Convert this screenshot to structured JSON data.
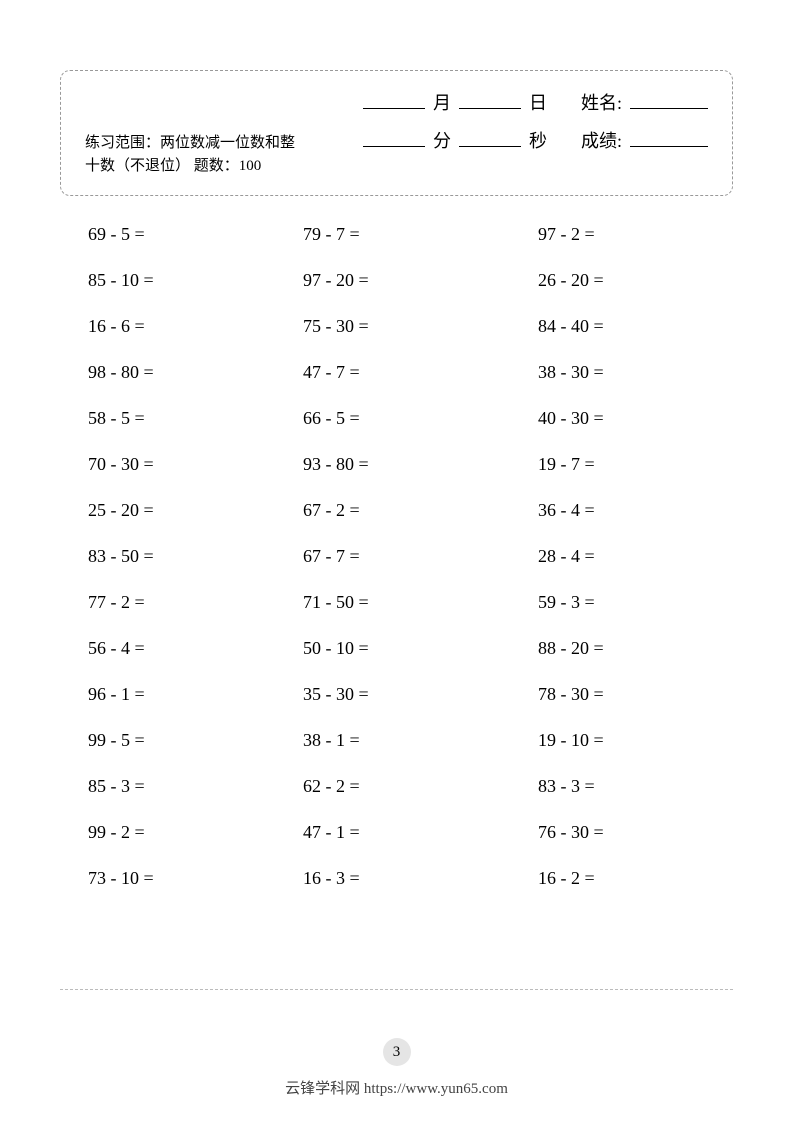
{
  "header": {
    "month_label": "月",
    "day_label": "日",
    "name_label": "姓名:",
    "minute_label": "分",
    "second_label": "秒",
    "score_label": "成绩:",
    "desc_line1": "练习范围：两位数减一位数和整",
    "desc_line2": "十数（不退位）  题数：100"
  },
  "problems": {
    "rows": [
      [
        "69 - 5 =",
        "79 - 7 =",
        "97 - 2 ="
      ],
      [
        "85 - 10 =",
        "97 - 20 =",
        "26 - 20 ="
      ],
      [
        "16 - 6 =",
        "75 - 30 =",
        "84 - 40 ="
      ],
      [
        "98 - 80 =",
        "47 - 7 =",
        "38 - 30 ="
      ],
      [
        "58 - 5 =",
        "66 - 5 =",
        "40 - 30 ="
      ],
      [
        "70 - 30 =",
        "93 - 80 =",
        "19 - 7 ="
      ],
      [
        "25 - 20 =",
        "67 - 2 =",
        "36 - 4 ="
      ],
      [
        "83 - 50 =",
        "67 - 7 =",
        "28 - 4 ="
      ],
      [
        "77 - 2 =",
        "71 - 50 =",
        "59 - 3 ="
      ],
      [
        "56 - 4 =",
        "50 - 10 =",
        "88 - 20 ="
      ],
      [
        "96 - 1 =",
        "35 - 30 =",
        "78 - 30 ="
      ],
      [
        "99 - 5 =",
        "38 - 1 =",
        "19 - 10 ="
      ],
      [
        "85 - 3 =",
        "62 - 2 =",
        "83 - 3 ="
      ],
      [
        "99 - 2 =",
        "47 - 1 =",
        "76 - 30 ="
      ],
      [
        "73 - 10 =",
        "16 - 3 =",
        "16 - 2 ="
      ]
    ]
  },
  "page_number": "3",
  "footer_text": "云锋学科网 https://www.yun65.com"
}
